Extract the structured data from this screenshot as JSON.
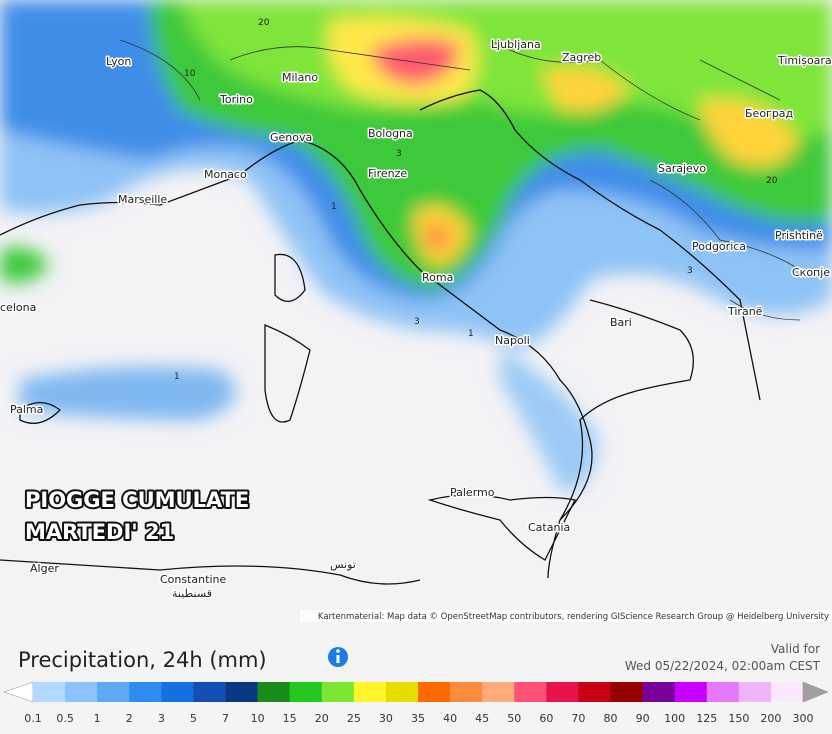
{
  "map": {
    "cities": [
      "Lyon",
      "Milano",
      "Torino",
      "Genova",
      "Monaco",
      "Marseille",
      "Bologna",
      "Firenze",
      "Roma",
      "Napoli",
      "Bari",
      "Ljubljana",
      "Zagreb",
      "Sarajevo",
      "Podgorica",
      "Tiranë",
      "Prishtinë",
      "Скопје",
      "Београд",
      "Timișoara",
      "Palermo",
      "Catania",
      "Alger",
      "Constantine",
      "قسنطينة",
      "تونس",
      "Palma",
      "celona"
    ],
    "contour_labels": [
      "20",
      "10",
      "3",
      "1",
      "3",
      "1",
      "1",
      "3",
      "20"
    ],
    "overlay": [
      "PIOGGE CUMULATE",
      "MARTEDI' 21"
    ],
    "attribution": "Kartenmaterial: Map data © OpenStreetMap contributors, rendering GIScience Research Group @ Heidelberg University"
  },
  "legend": {
    "title": "Precipitation, 24h (mm)",
    "valid_label": "Valid for",
    "valid_time": "Wed 05/22/2024, 02:00am CEST",
    "ticks": [
      "0.1",
      "0.5",
      "1",
      "2",
      "3",
      "5",
      "7",
      "10",
      "15",
      "20",
      "25",
      "30",
      "35",
      "40",
      "45",
      "50",
      "60",
      "70",
      "80",
      "90",
      "100",
      "125",
      "150",
      "200",
      "300"
    ],
    "colors": [
      "#b4d8ff",
      "#8cc3ff",
      "#5ea9f6",
      "#2f8cf0",
      "#1470e0",
      "#1450b4",
      "#0a3782",
      "#1a8c1e",
      "#22c81e",
      "#7ae632",
      "#fff52a",
      "#e6dc00",
      "#ff6a00",
      "#ff8c3c",
      "#ffac7a",
      "#ff5078",
      "#e6144b",
      "#c80014",
      "#960000",
      "#78009b",
      "#c800ff",
      "#e678ff",
      "#f0b4ff",
      "#fae8ff",
      "#d2d2d2"
    ]
  }
}
